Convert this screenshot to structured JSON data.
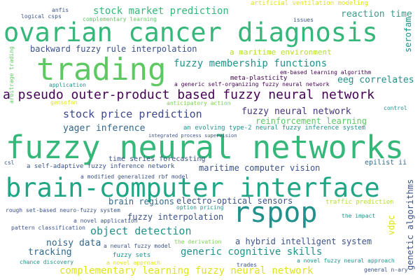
{
  "palette": {
    "green_bright": "#5ec962",
    "green_mid": "#35b779",
    "teal": "#21918c",
    "blue": "#31688e",
    "indigo": "#3b528b",
    "purple": "#443983",
    "dark_purple": "#440154",
    "yellow": "#dfe318",
    "yellow_green": "#b5de2b",
    "light_green": "#7ad151",
    "background": "#ffffff"
  },
  "words": [
    {
      "text": "ovarian cancer diagnosis",
      "color": "#35b779"
    },
    {
      "text": "trading",
      "color": "#5ec962"
    },
    {
      "text": "fuzzy neural networks",
      "color": "#35b779"
    },
    {
      "text": "brain-computer interface",
      "color": "#21a685"
    },
    {
      "text": "rspop",
      "color": "#21918c"
    },
    {
      "text": "a pseudo outer-product based fuzzy neural network",
      "color": "#440154"
    },
    {
      "text": "stock market prediction",
      "color": "#35b779"
    },
    {
      "text": "fuzzy membership functions",
      "color": "#21918c"
    },
    {
      "text": "stock price prediction",
      "color": "#3e4989"
    },
    {
      "text": "fuzzy neural network",
      "color": "#46337f"
    },
    {
      "text": "reinforcement learning",
      "color": "#5ec962"
    },
    {
      "text": "yager inference",
      "color": "#31688e"
    },
    {
      "text": "backward fuzzy rule interpolation",
      "color": "#3b528b"
    },
    {
      "text": "a maritime environment",
      "color": "#b5de2b"
    },
    {
      "text": "eeg correlates",
      "color": "#21918c"
    },
    {
      "text": "reaction time",
      "color": "#3e9b8a"
    },
    {
      "text": "serofam",
      "color": "#21918c"
    },
    {
      "text": "complementary learning fuzzy neural network",
      "color": "#dfe318"
    },
    {
      "text": "generic cognitive skills",
      "color": "#21918c"
    },
    {
      "text": "object detection",
      "color": "#21918c"
    },
    {
      "text": "maritime computer vision",
      "color": "#3b528b"
    },
    {
      "text": "brain regions",
      "color": "#31688e"
    },
    {
      "text": "electro-optical sensors",
      "color": "#3b528b"
    },
    {
      "text": "fuzzy interpolation",
      "color": "#3b528b"
    },
    {
      "text": "noisy data",
      "color": "#31688e"
    },
    {
      "text": "a hybrid intelligent system",
      "color": "#3b528b"
    },
    {
      "text": "tracking",
      "color": "#31688e"
    },
    {
      "text": "genetic algorithms",
      "color": "#3b528b"
    },
    {
      "text": "vdpc",
      "color": "#dfe318"
    },
    {
      "text": "epilist ii",
      "color": "#31688e"
    },
    {
      "text": "time series forecasting",
      "color": "#3b528b"
    },
    {
      "text": "an evolving type-2 neural fuzzy inference system",
      "color": "#21918c"
    },
    {
      "text": "a self-adaptive fuzzy inference network",
      "color": "#3b528b"
    },
    {
      "text": "artificial ventilation modeling",
      "color": "#dfe318"
    },
    {
      "text": "complementary learning",
      "color": "#5ec962"
    },
    {
      "text": "logical csps",
      "color": "#3b528b"
    },
    {
      "text": "anfis",
      "color": "#3b528b"
    },
    {
      "text": "issues",
      "color": "#3b528b"
    },
    {
      "text": "em-based learning algorithm",
      "color": "#440154"
    },
    {
      "text": "meta-plasticity",
      "color": "#440154"
    },
    {
      "text": "a generic self-organizing fuzzy neural network",
      "color": "#440154"
    },
    {
      "text": "application",
      "color": "#21918c"
    },
    {
      "text": "gensofnn",
      "color": "#dfe318"
    },
    {
      "text": "anticipatory action",
      "color": "#7ad151"
    },
    {
      "text": "arbitrage trading",
      "color": "#5ec962"
    },
    {
      "text": "control",
      "color": "#21918c"
    },
    {
      "text": "integrated process supervision",
      "color": "#3b528b"
    },
    {
      "text": "csl",
      "color": "#3b528b"
    },
    {
      "text": "a modified generalized rbf model",
      "color": "#3b528b"
    },
    {
      "text": "traffic prediction",
      "color": "#b5de2b"
    },
    {
      "text": "option pricing",
      "color": "#21918c"
    },
    {
      "text": "rough set-based neuro-fuzzy system",
      "color": "#3b528b"
    },
    {
      "text": "a novel application",
      "color": "#3b528b"
    },
    {
      "text": "the impact",
      "color": "#21918c"
    },
    {
      "text": "pattern classification",
      "color": "#3b528b"
    },
    {
      "text": "a neural fuzzy model",
      "color": "#3b528b"
    },
    {
      "text": "the derivation",
      "color": "#7ad151"
    },
    {
      "text": "fuzzy sets",
      "color": "#21918c"
    },
    {
      "text": "a novel approach",
      "color": "#dfe318"
    },
    {
      "text": "a novel fuzzy neural approach",
      "color": "#21918c"
    },
    {
      "text": "chance discovery",
      "color": "#21918c"
    },
    {
      "text": "trades",
      "color": "#3b528b"
    },
    {
      "text": "general n-ary",
      "color": "#3b528b"
    }
  ]
}
